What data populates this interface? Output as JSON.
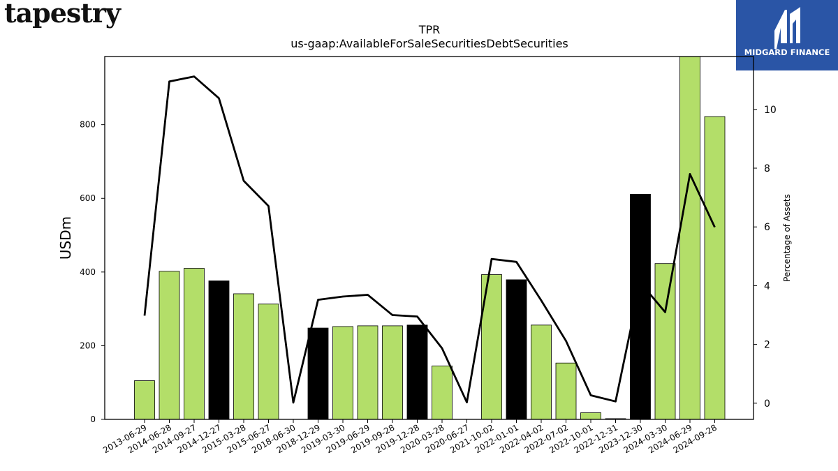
{
  "brand": {
    "name": "tapestry"
  },
  "logo": {
    "name": "MIDGARD FINANCE",
    "bg_color": "#2a55a6"
  },
  "chart_data": {
    "type": "bar",
    "title": "TPR",
    "subtitle": "us-gaap:AvailableForSaleSecuritiesDebtSecurities",
    "ylabel": "USDm",
    "y2label": "Percentage of Assets",
    "ylim": [
      0,
      985
    ],
    "y2lim": [
      -0.55,
      11.8
    ],
    "yticks": [
      0,
      200,
      400,
      600,
      800
    ],
    "y2ticks": [
      0,
      2,
      4,
      6,
      8,
      10
    ],
    "categories": [
      "2013-06-29",
      "2014-06-28",
      "2014-09-27",
      "2014-12-27",
      "2015-03-28",
      "2015-06-27",
      "2018-06-30",
      "2018-12-29",
      "2019-03-30",
      "2019-06-29",
      "2019-09-28",
      "2019-12-28",
      "2020-03-28",
      "2020-06-27",
      "2021-10-02",
      "2022-01-01",
      "2022-04-02",
      "2022-07-02",
      "2022-10-01",
      "2022-12-31",
      "2023-12-30",
      "2024-03-30",
      "2024-06-29",
      "2024-09-28"
    ],
    "series": [
      {
        "type": "bar",
        "values": [
          105,
          402,
          410,
          376,
          341,
          313,
          0,
          248,
          252,
          254,
          254,
          256,
          145,
          0,
          393,
          379,
          256,
          153,
          18,
          2,
          611,
          423,
          985,
          822
        ]
      },
      {
        "type": "line",
        "axis": "right",
        "values": [
          2.98,
          10.95,
          11.12,
          10.38,
          7.57,
          6.71,
          0.02,
          3.52,
          3.63,
          3.69,
          3.0,
          2.95,
          1.87,
          0.03,
          4.91,
          4.81,
          3.5,
          2.12,
          0.27,
          0.06,
          4.1,
          3.1,
          7.8,
          5.99
        ]
      }
    ],
    "bar_colors": [
      "#b3de69",
      "#b3de69",
      "#b3de69",
      "#000000",
      "#b3de69",
      "#b3de69",
      "#b3de69",
      "#000000",
      "#b3de69",
      "#b3de69",
      "#b3de69",
      "#000000",
      "#b3de69",
      "#b3de69",
      "#b3de69",
      "#000000",
      "#b3de69",
      "#b3de69",
      "#b3de69",
      "#000000",
      "#000000",
      "#b3de69",
      "#b3de69",
      "#b3de69"
    ],
    "line_color": "#000000",
    "grid": false
  }
}
